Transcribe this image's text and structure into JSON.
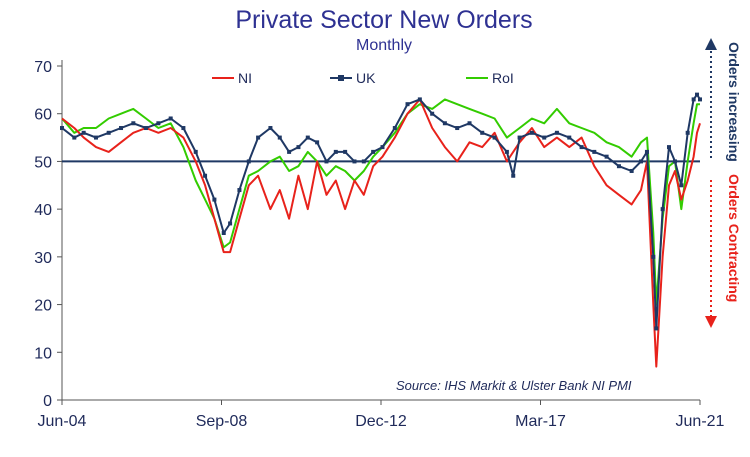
{
  "chart_data": {
    "type": "line",
    "title": "Private Sector New Orders",
    "subtitle": "Monthly",
    "source": "Source: IHS Markit & Ulster Bank NI PMI",
    "x_tick_labels": [
      "Jun-04",
      "Sep-08",
      "Dec-12",
      "Mar-17",
      "Jun-21"
    ],
    "x_start": "Jun-04",
    "x_end": "Jun-21",
    "y_ticks": [
      0,
      10,
      20,
      30,
      40,
      50,
      60,
      70
    ],
    "ylim": [
      0,
      70
    ],
    "reference_line": 50,
    "grid": false,
    "legend_position": "top",
    "annotations": {
      "up": "Orders increasing",
      "down": "Orders Contracting"
    },
    "series": [
      {
        "name": "NI",
        "color": "#e8221b",
        "marker": "none",
        "values": [
          [
            2004.42,
            59
          ],
          [
            2004.75,
            57
          ],
          [
            2005.0,
            55
          ],
          [
            2005.33,
            53
          ],
          [
            2005.67,
            52
          ],
          [
            2006.0,
            54
          ],
          [
            2006.33,
            56
          ],
          [
            2006.67,
            57
          ],
          [
            2007.0,
            56
          ],
          [
            2007.33,
            57
          ],
          [
            2007.67,
            55
          ],
          [
            2008.0,
            50
          ],
          [
            2008.25,
            45
          ],
          [
            2008.5,
            38
          ],
          [
            2008.75,
            31
          ],
          [
            2008.92,
            31
          ],
          [
            2009.17,
            38
          ],
          [
            2009.42,
            45
          ],
          [
            2009.67,
            47
          ],
          [
            2010.0,
            40
          ],
          [
            2010.25,
            44
          ],
          [
            2010.5,
            38
          ],
          [
            2010.75,
            47
          ],
          [
            2011.0,
            40
          ],
          [
            2011.25,
            50
          ],
          [
            2011.5,
            43
          ],
          [
            2011.75,
            46
          ],
          [
            2012.0,
            40
          ],
          [
            2012.25,
            46
          ],
          [
            2012.5,
            43
          ],
          [
            2012.75,
            49
          ],
          [
            2013.0,
            51
          ],
          [
            2013.33,
            55
          ],
          [
            2013.67,
            60
          ],
          [
            2014.0,
            63
          ],
          [
            2014.33,
            57
          ],
          [
            2014.67,
            53
          ],
          [
            2015.0,
            50
          ],
          [
            2015.33,
            54
          ],
          [
            2015.67,
            53
          ],
          [
            2016.0,
            56
          ],
          [
            2016.33,
            50
          ],
          [
            2016.67,
            54
          ],
          [
            2017.0,
            57
          ],
          [
            2017.33,
            53
          ],
          [
            2017.67,
            55
          ],
          [
            2018.0,
            53
          ],
          [
            2018.33,
            55
          ],
          [
            2018.67,
            49
          ],
          [
            2019.0,
            45
          ],
          [
            2019.33,
            43
          ],
          [
            2019.67,
            41
          ],
          [
            2019.92,
            44
          ],
          [
            2020.08,
            50
          ],
          [
            2020.25,
            20
          ],
          [
            2020.33,
            7
          ],
          [
            2020.5,
            30
          ],
          [
            2020.67,
            45
          ],
          [
            2020.83,
            48
          ],
          [
            2021.0,
            42
          ],
          [
            2021.17,
            46
          ],
          [
            2021.33,
            51
          ],
          [
            2021.42,
            56
          ],
          [
            2021.5,
            58
          ]
        ]
      },
      {
        "name": "UK",
        "color": "#1f3864",
        "marker": "square",
        "values": [
          [
            2004.42,
            57
          ],
          [
            2004.75,
            55
          ],
          [
            2005.0,
            56
          ],
          [
            2005.33,
            55
          ],
          [
            2005.67,
            56
          ],
          [
            2006.0,
            57
          ],
          [
            2006.33,
            58
          ],
          [
            2006.67,
            57
          ],
          [
            2007.0,
            58
          ],
          [
            2007.33,
            59
          ],
          [
            2007.67,
            57
          ],
          [
            2008.0,
            52
          ],
          [
            2008.25,
            47
          ],
          [
            2008.5,
            42
          ],
          [
            2008.75,
            35
          ],
          [
            2008.92,
            37
          ],
          [
            2009.17,
            44
          ],
          [
            2009.42,
            50
          ],
          [
            2009.67,
            55
          ],
          [
            2010.0,
            57
          ],
          [
            2010.25,
            55
          ],
          [
            2010.5,
            52
          ],
          [
            2010.75,
            53
          ],
          [
            2011.0,
            55
          ],
          [
            2011.25,
            54
          ],
          [
            2011.5,
            50
          ],
          [
            2011.75,
            52
          ],
          [
            2012.0,
            52
          ],
          [
            2012.25,
            50
          ],
          [
            2012.5,
            50
          ],
          [
            2012.75,
            52
          ],
          [
            2013.0,
            53
          ],
          [
            2013.33,
            57
          ],
          [
            2013.67,
            62
          ],
          [
            2014.0,
            63
          ],
          [
            2014.33,
            60
          ],
          [
            2014.67,
            58
          ],
          [
            2015.0,
            57
          ],
          [
            2015.33,
            58
          ],
          [
            2015.67,
            56
          ],
          [
            2016.0,
            55
          ],
          [
            2016.33,
            52
          ],
          [
            2016.5,
            47
          ],
          [
            2016.67,
            55
          ],
          [
            2017.0,
            56
          ],
          [
            2017.33,
            55
          ],
          [
            2017.67,
            56
          ],
          [
            2018.0,
            55
          ],
          [
            2018.33,
            53
          ],
          [
            2018.67,
            52
          ],
          [
            2019.0,
            51
          ],
          [
            2019.33,
            49
          ],
          [
            2019.67,
            48
          ],
          [
            2019.92,
            50
          ],
          [
            2020.08,
            52
          ],
          [
            2020.25,
            30
          ],
          [
            2020.33,
            15
          ],
          [
            2020.5,
            40
          ],
          [
            2020.67,
            53
          ],
          [
            2020.83,
            50
          ],
          [
            2021.0,
            45
          ],
          [
            2021.17,
            56
          ],
          [
            2021.33,
            63
          ],
          [
            2021.42,
            64
          ],
          [
            2021.5,
            63
          ]
        ]
      },
      {
        "name": "RoI",
        "color": "#33cc00",
        "marker": "none",
        "values": [
          [
            2004.42,
            59
          ],
          [
            2004.75,
            56
          ],
          [
            2005.0,
            57
          ],
          [
            2005.33,
            57
          ],
          [
            2005.67,
            59
          ],
          [
            2006.0,
            60
          ],
          [
            2006.33,
            61
          ],
          [
            2006.67,
            59
          ],
          [
            2007.0,
            57
          ],
          [
            2007.33,
            58
          ],
          [
            2007.67,
            53
          ],
          [
            2008.0,
            46
          ],
          [
            2008.25,
            42
          ],
          [
            2008.5,
            38
          ],
          [
            2008.75,
            32
          ],
          [
            2008.92,
            33
          ],
          [
            2009.17,
            40
          ],
          [
            2009.42,
            47
          ],
          [
            2009.67,
            48
          ],
          [
            2010.0,
            50
          ],
          [
            2010.25,
            51
          ],
          [
            2010.5,
            48
          ],
          [
            2010.75,
            49
          ],
          [
            2011.0,
            52
          ],
          [
            2011.25,
            50
          ],
          [
            2011.5,
            47
          ],
          [
            2011.75,
            49
          ],
          [
            2012.0,
            48
          ],
          [
            2012.25,
            46
          ],
          [
            2012.5,
            48
          ],
          [
            2012.75,
            51
          ],
          [
            2013.0,
            53
          ],
          [
            2013.33,
            56
          ],
          [
            2013.67,
            60
          ],
          [
            2014.0,
            62
          ],
          [
            2014.33,
            61
          ],
          [
            2014.67,
            63
          ],
          [
            2015.0,
            62
          ],
          [
            2015.33,
            61
          ],
          [
            2015.67,
            60
          ],
          [
            2016.0,
            59
          ],
          [
            2016.33,
            55
          ],
          [
            2016.67,
            57
          ],
          [
            2017.0,
            59
          ],
          [
            2017.33,
            58
          ],
          [
            2017.67,
            61
          ],
          [
            2018.0,
            58
          ],
          [
            2018.33,
            57
          ],
          [
            2018.67,
            56
          ],
          [
            2019.0,
            54
          ],
          [
            2019.33,
            53
          ],
          [
            2019.67,
            51
          ],
          [
            2019.92,
            54
          ],
          [
            2020.08,
            55
          ],
          [
            2020.25,
            35
          ],
          [
            2020.33,
            20
          ],
          [
            2020.5,
            38
          ],
          [
            2020.67,
            49
          ],
          [
            2020.83,
            50
          ],
          [
            2021.0,
            40
          ],
          [
            2021.17,
            50
          ],
          [
            2021.33,
            58
          ],
          [
            2021.42,
            62
          ],
          [
            2021.5,
            62
          ]
        ]
      }
    ]
  }
}
